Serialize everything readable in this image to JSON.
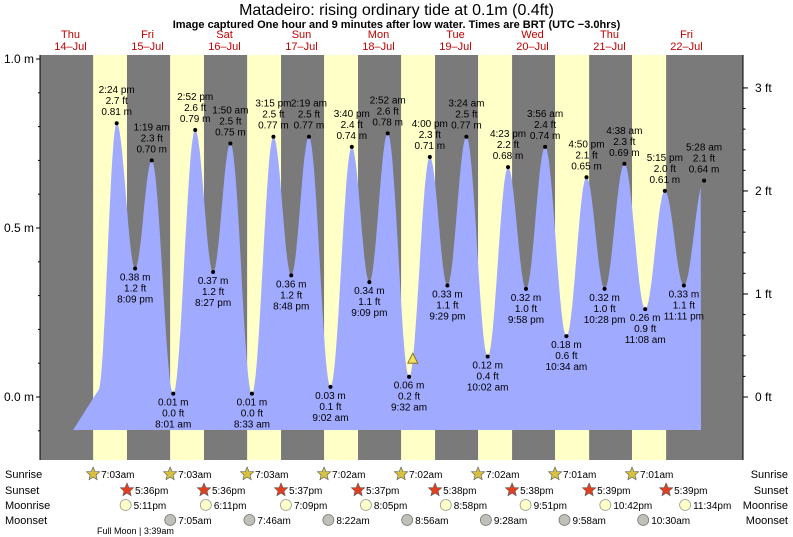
{
  "chart_data": {
    "type": "area",
    "title": "Matadeiro: rising  ordinary tide at 0.1m (0.4ft)",
    "subtitle": "Image captured One hour and 9 minutes after low water. Times are BRT (UTC −3.0hrs)",
    "days": [
      {
        "dow": "Thu",
        "date": "14–Jul"
      },
      {
        "dow": "Fri",
        "date": "15–Jul"
      },
      {
        "dow": "Sat",
        "date": "16–Jul"
      },
      {
        "dow": "Sun",
        "date": "17–Jul"
      },
      {
        "dow": "Mon",
        "date": "18–Jul"
      },
      {
        "dow": "Tue",
        "date": "19–Jul"
      },
      {
        "dow": "Wed",
        "date": "20–Jul"
      },
      {
        "dow": "Thu",
        "date": "21–Jul"
      },
      {
        "dow": "Fri",
        "date": "22–Jul"
      }
    ],
    "y_left": {
      "unit": "m",
      "ticks": [
        "0.0 m",
        "0.5 m",
        "1.0 m"
      ],
      "values": [
        0.0,
        0.5,
        1.0
      ],
      "range": [
        -0.15,
        1.02
      ]
    },
    "y_right": {
      "unit": "ft",
      "ticks": [
        "0 ft",
        "1 ft",
        "2 ft",
        "3 ft"
      ],
      "values": [
        0,
        1,
        2,
        3
      ]
    },
    "extremes": [
      {
        "kind": "high",
        "m": 0.81,
        "label_m": "0.81 m",
        "label_ft": "2.7 ft",
        "time": "2:24 pm",
        "day": 0,
        "hour": 14.4
      },
      {
        "kind": "low",
        "m": 0.38,
        "label_m": "0.38 m",
        "label_ft": "1.2 ft",
        "time": "8:09 pm",
        "day": 0,
        "hour": 20.15
      },
      {
        "kind": "high",
        "m": 0.7,
        "label_m": "0.70 m",
        "label_ft": "2.3 ft",
        "time": "1:19 am",
        "day": 1,
        "hour": 1.32
      },
      {
        "kind": "low",
        "m": 0.01,
        "label_m": "0.01 m",
        "label_ft": "0.0 ft",
        "time": "8:01 am",
        "day": 1,
        "hour": 8.02
      },
      {
        "kind": "high",
        "m": 0.79,
        "label_m": "0.79 m",
        "label_ft": "2.6 ft",
        "time": "2:52 pm",
        "day": 1,
        "hour": 14.87
      },
      {
        "kind": "low",
        "m": 0.37,
        "label_m": "0.37 m",
        "label_ft": "1.2 ft",
        "time": "8:27 pm",
        "day": 1,
        "hour": 20.45
      },
      {
        "kind": "high",
        "m": 0.75,
        "label_m": "0.75 m",
        "label_ft": "2.5 ft",
        "time": "1:50 am",
        "day": 2,
        "hour": 1.83
      },
      {
        "kind": "low",
        "m": 0.01,
        "label_m": "0.01 m",
        "label_ft": "0.0 ft",
        "time": "8:33 am",
        "day": 2,
        "hour": 8.55
      },
      {
        "kind": "high",
        "m": 0.77,
        "label_m": "0.77 m",
        "label_ft": "2.5 ft",
        "time": "3:15 pm",
        "day": 2,
        "hour": 15.25
      },
      {
        "kind": "low",
        "m": 0.36,
        "label_m": "0.36 m",
        "label_ft": "1.2 ft",
        "time": "8:48 pm",
        "day": 2,
        "hour": 20.8
      },
      {
        "kind": "high",
        "m": 0.77,
        "label_m": "0.77 m",
        "label_ft": "2.5 ft",
        "time": "2:19 am",
        "day": 3,
        "hour": 2.32
      },
      {
        "kind": "low",
        "m": 0.03,
        "label_m": "0.03 m",
        "label_ft": "0.1 ft",
        "time": "9:02 am",
        "day": 3,
        "hour": 9.03
      },
      {
        "kind": "high",
        "m": 0.74,
        "label_m": "0.74 m",
        "label_ft": "2.4 ft",
        "time": "3:40 pm",
        "day": 3,
        "hour": 15.67
      },
      {
        "kind": "low",
        "m": 0.34,
        "label_m": "0.34 m",
        "label_ft": "1.1 ft",
        "time": "9:09 pm",
        "day": 3,
        "hour": 21.15
      },
      {
        "kind": "high",
        "m": 0.78,
        "label_m": "0.78 m",
        "label_ft": "2.6 ft",
        "time": "2:52 am",
        "day": 4,
        "hour": 2.87
      },
      {
        "kind": "low",
        "m": 0.06,
        "label_m": "0.06 m",
        "label_ft": "0.2 ft",
        "time": "9:32 am",
        "day": 4,
        "hour": 9.53
      },
      {
        "kind": "high",
        "m": 0.71,
        "label_m": "0.71 m",
        "label_ft": "2.3 ft",
        "time": "4:00 pm",
        "day": 4,
        "hour": 16.0
      },
      {
        "kind": "low",
        "m": 0.33,
        "label_m": "0.33 m",
        "label_ft": "1.1 ft",
        "time": "9:29 pm",
        "day": 4,
        "hour": 21.48
      },
      {
        "kind": "high",
        "m": 0.77,
        "label_m": "0.77 m",
        "label_ft": "2.5 ft",
        "time": "3:24 am",
        "day": 5,
        "hour": 3.4
      },
      {
        "kind": "low",
        "m": 0.12,
        "label_m": "0.12 m",
        "label_ft": "0.4 ft",
        "time": "10:02 am",
        "day": 5,
        "hour": 10.03
      },
      {
        "kind": "high",
        "m": 0.68,
        "label_m": "0.68 m",
        "label_ft": "2.2 ft",
        "time": "4:23 pm",
        "day": 5,
        "hour": 16.38
      },
      {
        "kind": "low",
        "m": 0.32,
        "label_m": "0.32 m",
        "label_ft": "1.0 ft",
        "time": "9:58 pm",
        "day": 5,
        "hour": 21.97
      },
      {
        "kind": "high",
        "m": 0.74,
        "label_m": "0.74 m",
        "label_ft": "2.4 ft",
        "time": "3:56 am",
        "day": 6,
        "hour": 3.93
      },
      {
        "kind": "low",
        "m": 0.18,
        "label_m": "0.18 m",
        "label_ft": "0.6 ft",
        "time": "10:34 am",
        "day": 6,
        "hour": 10.57
      },
      {
        "kind": "high",
        "m": 0.65,
        "label_m": "0.65 m",
        "label_ft": "2.1 ft",
        "time": "4:50 pm",
        "day": 6,
        "hour": 16.83
      },
      {
        "kind": "low",
        "m": 0.32,
        "label_m": "0.32 m",
        "label_ft": "1.0 ft",
        "time": "10:28 pm",
        "day": 6,
        "hour": 22.47
      },
      {
        "kind": "high",
        "m": 0.69,
        "label_m": "0.69 m",
        "label_ft": "2.3 ft",
        "time": "4:38 am",
        "day": 7,
        "hour": 4.63
      },
      {
        "kind": "low",
        "m": 0.26,
        "label_m": "0.26 m",
        "label_ft": "0.9 ft",
        "time": "11:08 am",
        "day": 7,
        "hour": 11.13
      },
      {
        "kind": "high",
        "m": 0.61,
        "label_m": "0.61 m",
        "label_ft": "2.0 ft",
        "time": "5:15 pm",
        "day": 7,
        "hour": 17.25
      },
      {
        "kind": "low",
        "m": 0.33,
        "label_m": "0.33 m",
        "label_ft": "1.1 ft",
        "time": "11:11 pm",
        "day": 7,
        "hour": 23.18
      },
      {
        "kind": "high",
        "m": 0.64,
        "label_m": "0.64 m",
        "label_ft": "2.1 ft",
        "time": "5:28 am",
        "day": 8,
        "hour": 5.47
      }
    ],
    "now_marker": {
      "m": 0.1,
      "day": 4,
      "hour": 10.68
    },
    "rows": {
      "sunrise_label": "Sunrise",
      "sunset_label": "Sunset",
      "moonrise_label": "Moonrise",
      "moonset_label": "Moonset",
      "sunrise": [
        {
          "time": "7:03am",
          "day": 0,
          "hour": 7.05
        },
        {
          "time": "7:03am",
          "day": 1,
          "hour": 7.05
        },
        {
          "time": "7:03am",
          "day": 2,
          "hour": 7.05
        },
        {
          "time": "7:02am",
          "day": 3,
          "hour": 7.03
        },
        {
          "time": "7:02am",
          "day": 4,
          "hour": 7.03
        },
        {
          "time": "7:02am",
          "day": 5,
          "hour": 7.03
        },
        {
          "time": "7:01am",
          "day": 6,
          "hour": 7.02
        },
        {
          "time": "7:01am",
          "day": 7,
          "hour": 7.02
        }
      ],
      "sunset": [
        {
          "time": "5:36pm",
          "day": 0,
          "hour": 17.6
        },
        {
          "time": "5:36pm",
          "day": 1,
          "hour": 17.6
        },
        {
          "time": "5:37pm",
          "day": 2,
          "hour": 17.62
        },
        {
          "time": "5:37pm",
          "day": 3,
          "hour": 17.62
        },
        {
          "time": "5:38pm",
          "day": 4,
          "hour": 17.63
        },
        {
          "time": "5:38pm",
          "day": 5,
          "hour": 17.63
        },
        {
          "time": "5:39pm",
          "day": 6,
          "hour": 17.65
        },
        {
          "time": "5:39pm",
          "day": 7,
          "hour": 17.65
        }
      ],
      "moonrise": [
        {
          "time": "5:11pm",
          "day": 0,
          "hour": 17.18
        },
        {
          "time": "6:11pm",
          "day": 1,
          "hour": 18.18
        },
        {
          "time": "7:09pm",
          "day": 2,
          "hour": 19.15
        },
        {
          "time": "8:05pm",
          "day": 3,
          "hour": 20.08
        },
        {
          "time": "8:58pm",
          "day": 4,
          "hour": 20.97
        },
        {
          "time": "9:51pm",
          "day": 5,
          "hour": 21.85
        },
        {
          "time": "10:42pm",
          "day": 6,
          "hour": 22.7
        },
        {
          "time": "11:34pm",
          "day": 7,
          "hour": 23.57
        }
      ],
      "moonset": [
        {
          "time": "7:05am",
          "day": 1,
          "hour": 7.08
        },
        {
          "time": "7:46am",
          "day": 2,
          "hour": 7.77
        },
        {
          "time": "8:22am",
          "day": 3,
          "hour": 8.37
        },
        {
          "time": "8:56am",
          "day": 4,
          "hour": 8.93
        },
        {
          "time": "9:28am",
          "day": 5,
          "hour": 9.47
        },
        {
          "time": "9:58am",
          "day": 6,
          "hour": 9.97
        },
        {
          "time": "10:30am",
          "day": 7,
          "hour": 10.5
        }
      ],
      "full_moon": "Full Moon | 3:39am"
    },
    "colors": {
      "night": "#7a7a7a",
      "day": "#ffffc8",
      "water": "#a0aaff",
      "outer": "#7a7a7a",
      "date_text": "#c00000",
      "sunset_star": "#e04020",
      "sunrise_star": "#d8c040"
    }
  }
}
